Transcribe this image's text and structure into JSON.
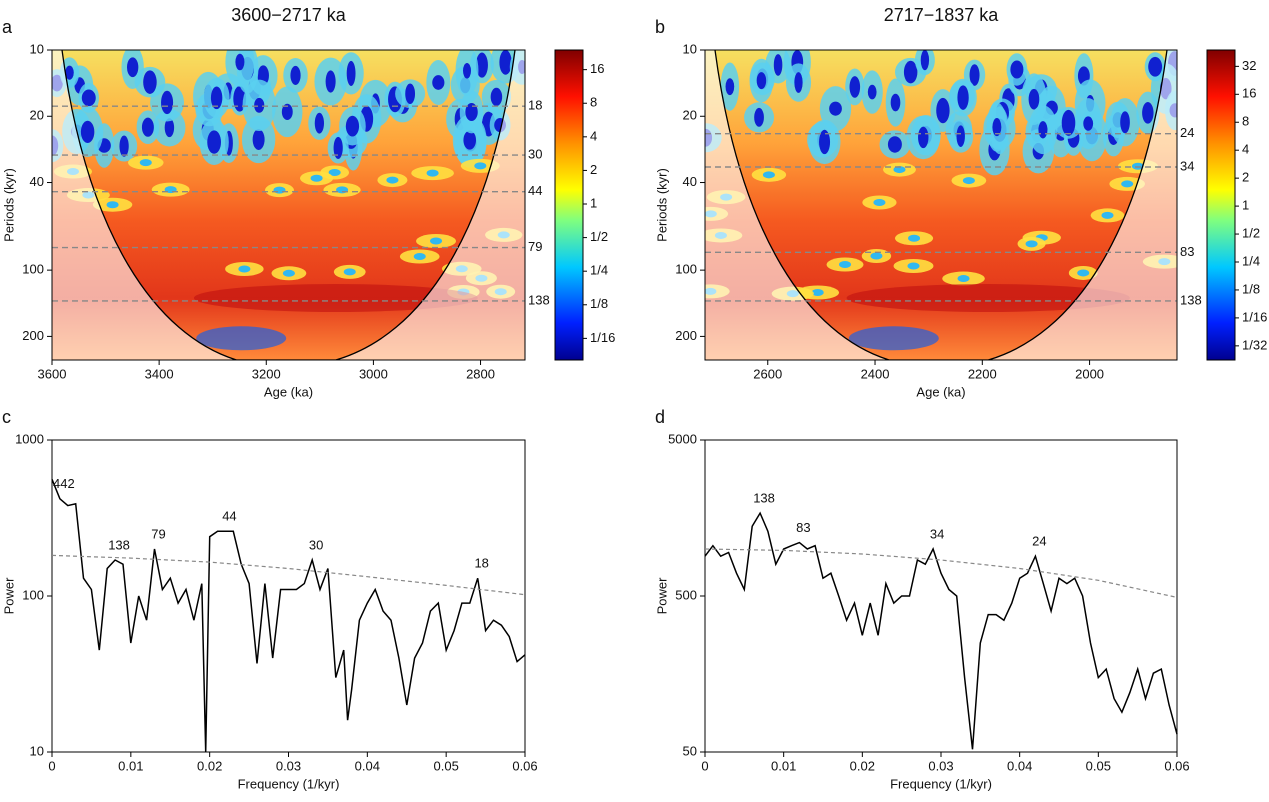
{
  "chart_data": [
    {
      "type": "wavelet",
      "panel": "a",
      "title": "3600−2717 ka",
      "x_label": "Age (ka)",
      "y_label": "Periods (kyr)",
      "xlim": [
        3600,
        2717
      ],
      "xticks": [
        3600,
        3400,
        3200,
        3000,
        2800
      ],
      "ylim": [
        10,
        256
      ],
      "yticks": [
        10,
        20,
        40,
        100,
        200
      ],
      "log_y": true,
      "periods": [
        18,
        30,
        44,
        79,
        138
      ],
      "colorbar": {
        "lim": [
          0.04,
          24
        ],
        "ticks": [
          16,
          8,
          4,
          2,
          1,
          {
            "value": 0.5,
            "label": "1/2"
          },
          {
            "value": 0.25,
            "label": "1/4"
          },
          {
            "value": 0.125,
            "label": "1/8"
          },
          {
            "value": 0.0625,
            "label": "1/16"
          }
        ]
      }
    },
    {
      "type": "wavelet",
      "panel": "b",
      "title": "2717−1837 ka",
      "x_label": "Age (ka)",
      "y_label": "Periods (kyr)",
      "xlim": [
        2717,
        1837
      ],
      "xticks": [
        2600,
        2400,
        2200,
        2000
      ],
      "ylim": [
        10,
        256
      ],
      "yticks": [
        10,
        20,
        40,
        100,
        200
      ],
      "log_y": true,
      "periods": [
        24,
        34,
        83,
        138
      ],
      "colorbar": {
        "lim": [
          0.022,
          48
        ],
        "ticks": [
          32,
          16,
          8,
          4,
          2,
          1,
          {
            "value": 0.5,
            "label": "1/2"
          },
          {
            "value": 0.25,
            "label": "1/4"
          },
          {
            "value": 0.125,
            "label": "1/8"
          },
          {
            "value": 0.0625,
            "label": "1/16"
          },
          {
            "value": 0.03125,
            "label": "1/32"
          }
        ]
      }
    },
    {
      "type": "line",
      "panel": "c",
      "x_label": "Frequency (1/kyr)",
      "y_label": "Power",
      "xlim": [
        0,
        0.06
      ],
      "xticks": [
        0,
        0.01,
        0.02,
        0.03,
        0.04,
        0.05,
        0.06
      ],
      "ylim": [
        10,
        1000
      ],
      "yticks": [
        10,
        100,
        1000
      ],
      "log_y": true,
      "peaks": [
        442,
        138,
        79,
        44,
        30,
        18
      ],
      "series": [
        {
          "color": "#000000",
          "dashed": false,
          "x": [
            0,
            0.001,
            0.002,
            0.003,
            0.004,
            0.005,
            0.006,
            0.007,
            0.008,
            0.009,
            0.01,
            0.011,
            0.012,
            0.013,
            0.014,
            0.015,
            0.016,
            0.017,
            0.018,
            0.019,
            0.0195,
            0.02,
            0.021,
            0.022,
            0.023,
            0.024,
            0.025,
            0.026,
            0.027,
            0.028,
            0.029,
            0.03,
            0.031,
            0.032,
            0.033,
            0.034,
            0.035,
            0.036,
            0.037,
            0.0375,
            0.038,
            0.039,
            0.04,
            0.041,
            0.042,
            0.043,
            0.044,
            0.045,
            0.046,
            0.047,
            0.048,
            0.049,
            0.05,
            0.051,
            0.052,
            0.053,
            0.054,
            0.055,
            0.056,
            0.057,
            0.058,
            0.059,
            0.06
          ],
          "values": [
            560,
            420,
            380,
            390,
            130,
            110,
            45,
            150,
            170,
            160,
            50,
            100,
            70,
            200,
            110,
            130,
            90,
            110,
            70,
            120,
            10,
            240,
            260,
            260,
            260,
            160,
            120,
            37,
            120,
            40,
            110,
            110,
            110,
            120,
            170,
            110,
            150,
            30,
            45,
            16,
            25,
            70,
            90,
            110,
            80,
            70,
            40,
            20,
            40,
            50,
            80,
            90,
            45,
            60,
            90,
            90,
            130,
            60,
            70,
            65,
            55,
            38,
            42
          ]
        },
        {
          "color": "#888888",
          "dashed": true,
          "x": [
            0,
            0.01,
            0.02,
            0.03,
            0.04,
            0.05,
            0.06
          ],
          "values": [
            182,
            175,
            165,
            150,
            133,
            117,
            102
          ]
        }
      ]
    },
    {
      "type": "line",
      "panel": "d",
      "x_label": "Frequency (1/kyr)",
      "y_label": "Power",
      "xlim": [
        0,
        0.06
      ],
      "xticks": [
        0,
        0.01,
        0.02,
        0.03,
        0.04,
        0.05,
        0.06
      ],
      "ylim": [
        50,
        5000
      ],
      "yticks": [
        50,
        500,
        5000
      ],
      "log_y": true,
      "peaks": [
        138,
        83,
        34,
        24
      ],
      "series": [
        {
          "color": "#000000",
          "dashed": false,
          "x": [
            0,
            0.001,
            0.002,
            0.003,
            0.004,
            0.005,
            0.006,
            0.007,
            0.008,
            0.009,
            0.01,
            0.011,
            0.012,
            0.013,
            0.014,
            0.015,
            0.016,
            0.017,
            0.018,
            0.019,
            0.02,
            0.021,
            0.022,
            0.023,
            0.024,
            0.025,
            0.026,
            0.027,
            0.028,
            0.029,
            0.03,
            0.031,
            0.032,
            0.033,
            0.034,
            0.035,
            0.036,
            0.037,
            0.038,
            0.039,
            0.04,
            0.041,
            0.042,
            0.043,
            0.044,
            0.045,
            0.046,
            0.047,
            0.048,
            0.049,
            0.05,
            0.051,
            0.052,
            0.053,
            0.054,
            0.055,
            0.056,
            0.057,
            0.058,
            0.059,
            0.06
          ],
          "values": [
            900,
            1050,
            900,
            950,
            700,
            550,
            1400,
            1700,
            1300,
            800,
            1000,
            1050,
            1100,
            1000,
            1050,
            650,
            700,
            500,
            350,
            450,
            280,
            450,
            280,
            600,
            450,
            500,
            500,
            850,
            800,
            1000,
            700,
            550,
            500,
            150,
            52,
            250,
            380,
            380,
            350,
            450,
            650,
            700,
            900,
            600,
            400,
            650,
            600,
            650,
            500,
            250,
            150,
            170,
            110,
            90,
            120,
            170,
            110,
            160,
            170,
            100,
            65
          ]
        },
        {
          "color": "#888888",
          "dashed": true,
          "x": [
            0,
            0.01,
            0.02,
            0.03,
            0.04,
            0.05,
            0.06
          ],
          "values": [
            1000,
            980,
            930,
            850,
            750,
            630,
            490
          ]
        }
      ]
    }
  ]
}
